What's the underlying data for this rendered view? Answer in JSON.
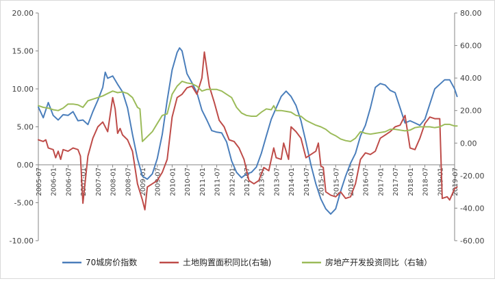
{
  "chart_data": {
    "type": "line",
    "title": "",
    "xlabel": "",
    "ylabel": "",
    "ylim_left": [
      -10,
      20
    ],
    "ylim_right": [
      -60,
      80
    ],
    "yticks_left": [
      "-10.00",
      "-5.00",
      "0.00",
      "5.00",
      "10.00",
      "15.00",
      "20.00"
    ],
    "yticks_right": [
      "-60.00",
      "-40.00",
      "-20.00",
      "0.00",
      "20.00",
      "40.00",
      "60.00",
      "80.00"
    ],
    "x_start": "2005-07",
    "x_end": "2019-07",
    "x_ticks": [
      "2005-07",
      "2006-01",
      "2006-07",
      "2007-01",
      "2007-07",
      "2008-01",
      "2008-07",
      "2009-01",
      "2009-07",
      "2010-01",
      "2010-07",
      "2011-01",
      "2011-07",
      "2012-01",
      "2012-07",
      "2013-01",
      "2013-07",
      "2014-01",
      "2014-07",
      "2015-01",
      "2015-07",
      "2016-01",
      "2016-07",
      "2017-01",
      "2017-07",
      "2018-01",
      "2018-07",
      "2019-01",
      "2019-07"
    ],
    "legend_position": "bottom",
    "grid": false,
    "series": [
      {
        "name": "70城房价指数",
        "axis": "left",
        "color": "#4a7ebb",
        "points": [
          [
            "2005-07",
            7.6
          ],
          [
            "2005-09",
            6.2
          ],
          [
            "2005-11",
            8.2
          ],
          [
            "2006-01",
            6.5
          ],
          [
            "2006-03",
            5.9
          ],
          [
            "2006-05",
            6.6
          ],
          [
            "2006-07",
            6.5
          ],
          [
            "2006-09",
            7.0
          ],
          [
            "2006-11",
            5.8
          ],
          [
            "2007-01",
            5.9
          ],
          [
            "2007-03",
            5.3
          ],
          [
            "2007-05",
            7.0
          ],
          [
            "2007-07",
            8.5
          ],
          [
            "2007-09",
            10.2
          ],
          [
            "2007-10",
            12.2
          ],
          [
            "2007-11",
            11.4
          ],
          [
            "2008-01",
            11.7
          ],
          [
            "2008-03",
            10.6
          ],
          [
            "2008-05",
            9.6
          ],
          [
            "2008-07",
            7.5
          ],
          [
            "2008-09",
            4.0
          ],
          [
            "2008-11",
            0.8
          ],
          [
            "2009-01",
            -1.5
          ],
          [
            "2009-03",
            -1.9
          ],
          [
            "2009-05",
            -1.2
          ],
          [
            "2009-07",
            0.8
          ],
          [
            "2009-09",
            4.0
          ],
          [
            "2009-11",
            8.5
          ],
          [
            "2010-01",
            12.5
          ],
          [
            "2010-03",
            14.8
          ],
          [
            "2010-04",
            15.4
          ],
          [
            "2010-05",
            15.0
          ],
          [
            "2010-07",
            12.0
          ],
          [
            "2010-09",
            10.8
          ],
          [
            "2010-11",
            9.5
          ],
          [
            "2011-01",
            7.2
          ],
          [
            "2011-03",
            5.9
          ],
          [
            "2011-05",
            4.5
          ],
          [
            "2011-07",
            4.3
          ],
          [
            "2011-09",
            4.2
          ],
          [
            "2011-11",
            3.0
          ],
          [
            "2012-01",
            0.5
          ],
          [
            "2012-03",
            -1.0
          ],
          [
            "2012-05",
            -1.7
          ],
          [
            "2012-07",
            -1.2
          ],
          [
            "2012-09",
            -1.0
          ],
          [
            "2012-11",
            -0.3
          ],
          [
            "2013-01",
            1.5
          ],
          [
            "2013-03",
            3.8
          ],
          [
            "2013-05",
            6.0
          ],
          [
            "2013-07",
            7.5
          ],
          [
            "2013-09",
            9.0
          ],
          [
            "2013-11",
            9.7
          ],
          [
            "2014-01",
            9.0
          ],
          [
            "2014-03",
            7.8
          ],
          [
            "2014-05",
            5.8
          ],
          [
            "2014-07",
            3.0
          ],
          [
            "2014-09",
            0.0
          ],
          [
            "2014-11",
            -2.5
          ],
          [
            "2015-01",
            -4.5
          ],
          [
            "2015-03",
            -5.8
          ],
          [
            "2015-05",
            -6.5
          ],
          [
            "2015-07",
            -5.8
          ],
          [
            "2015-09",
            -3.5
          ],
          [
            "2015-11",
            -1.5
          ],
          [
            "2016-01",
            0.2
          ],
          [
            "2016-03",
            1.5
          ],
          [
            "2016-05",
            3.8
          ],
          [
            "2016-07",
            5.2
          ],
          [
            "2016-09",
            7.5
          ],
          [
            "2016-11",
            10.2
          ],
          [
            "2017-01",
            10.7
          ],
          [
            "2017-03",
            10.5
          ],
          [
            "2017-05",
            9.8
          ],
          [
            "2017-07",
            9.5
          ],
          [
            "2017-09",
            7.5
          ],
          [
            "2017-11",
            5.5
          ],
          [
            "2018-01",
            5.8
          ],
          [
            "2018-03",
            5.5
          ],
          [
            "2018-05",
            5.2
          ],
          [
            "2018-07",
            6.0
          ],
          [
            "2018-09",
            8.0
          ],
          [
            "2018-11",
            10.0
          ],
          [
            "2019-01",
            10.6
          ],
          [
            "2019-03",
            11.2
          ],
          [
            "2019-05",
            11.2
          ],
          [
            "2019-07",
            10.0
          ],
          [
            "2019-08",
            9.0
          ]
        ]
      },
      {
        "name": "土地购置面积同比(右轴)",
        "axis": "right",
        "color": "#be4b48",
        "points": [
          [
            "2005-07",
            2.0
          ],
          [
            "2005-09",
            1.0
          ],
          [
            "2005-10",
            2.0
          ],
          [
            "2005-11",
            -3.0
          ],
          [
            "2006-01",
            -4.0
          ],
          [
            "2006-02",
            -9.0
          ],
          [
            "2006-03",
            -5.0
          ],
          [
            "2006-04",
            -10.0
          ],
          [
            "2006-05",
            -4.0
          ],
          [
            "2006-07",
            -5.0
          ],
          [
            "2006-09",
            -3.0
          ],
          [
            "2006-11",
            -4.0
          ],
          [
            "2006-12",
            -8.0
          ],
          [
            "2007-01",
            -37.0
          ],
          [
            "2007-03",
            -8.0
          ],
          [
            "2007-05",
            3.0
          ],
          [
            "2007-07",
            10.0
          ],
          [
            "2007-09",
            13.0
          ],
          [
            "2007-11",
            7.0
          ],
          [
            "2008-01",
            28.0
          ],
          [
            "2008-02",
            21.0
          ],
          [
            "2008-03",
            6.0
          ],
          [
            "2008-04",
            9.0
          ],
          [
            "2008-05",
            5.0
          ],
          [
            "2008-07",
            2.0
          ],
          [
            "2008-09",
            -5.0
          ],
          [
            "2008-11",
            -25.0
          ],
          [
            "2009-01",
            -35.0
          ],
          [
            "2009-02",
            -41.0
          ],
          [
            "2009-03",
            -27.0
          ],
          [
            "2009-05",
            -25.0
          ],
          [
            "2009-07",
            -23.0
          ],
          [
            "2009-09",
            -18.0
          ],
          [
            "2009-11",
            -10.0
          ],
          [
            "2010-01",
            16.0
          ],
          [
            "2010-03",
            28.0
          ],
          [
            "2010-05",
            30.0
          ],
          [
            "2010-07",
            34.0
          ],
          [
            "2010-09",
            35.0
          ],
          [
            "2010-11",
            30.0
          ],
          [
            "2011-01",
            40.0
          ],
          [
            "2011-02",
            56.0
          ],
          [
            "2011-04",
            35.0
          ],
          [
            "2011-06",
            25.0
          ],
          [
            "2011-08",
            14.0
          ],
          [
            "2011-10",
            10.0
          ],
          [
            "2011-12",
            2.0
          ],
          [
            "2012-02",
            1.0
          ],
          [
            "2012-04",
            -3.0
          ],
          [
            "2012-06",
            -10.0
          ],
          [
            "2012-08",
            -23.0
          ],
          [
            "2012-10",
            -25.0
          ],
          [
            "2012-12",
            -23.0
          ],
          [
            "2013-02",
            -15.0
          ],
          [
            "2013-04",
            -17.0
          ],
          [
            "2013-06",
            -3.0
          ],
          [
            "2013-07",
            -9.0
          ],
          [
            "2013-09",
            -10.0
          ],
          [
            "2013-10",
            0.0
          ],
          [
            "2013-12",
            -10.0
          ],
          [
            "2014-01",
            10.0
          ],
          [
            "2014-03",
            7.0
          ],
          [
            "2014-05",
            3.0
          ],
          [
            "2014-07",
            -9.0
          ],
          [
            "2014-09",
            -7.0
          ],
          [
            "2014-11",
            -5.0
          ],
          [
            "2014-12",
            0.0
          ],
          [
            "2015-01",
            -14.0
          ],
          [
            "2015-02",
            -15.0
          ],
          [
            "2015-03",
            -30.0
          ],
          [
            "2015-05",
            -32.0
          ],
          [
            "2015-07",
            -33.0
          ],
          [
            "2015-09",
            -30.0
          ],
          [
            "2015-11",
            -34.0
          ],
          [
            "2016-01",
            -33.0
          ],
          [
            "2016-03",
            -25.0
          ],
          [
            "2016-05",
            -10.0
          ],
          [
            "2016-07",
            -6.0
          ],
          [
            "2016-09",
            -7.0
          ],
          [
            "2016-11",
            -5.0
          ],
          [
            "2017-01",
            3.0
          ],
          [
            "2017-03",
            5.0
          ],
          [
            "2017-05",
            7.0
          ],
          [
            "2017-07",
            10.0
          ],
          [
            "2017-09",
            11.0
          ],
          [
            "2017-11",
            17.0
          ],
          [
            "2018-01",
            -3.0
          ],
          [
            "2018-03",
            -4.0
          ],
          [
            "2018-05",
            3.0
          ],
          [
            "2018-07",
            12.0
          ],
          [
            "2018-09",
            16.0
          ],
          [
            "2018-11",
            15.0
          ],
          [
            "2019-01",
            15.0
          ],
          [
            "2019-02",
            -34.0
          ],
          [
            "2019-04",
            -33.0
          ],
          [
            "2019-05",
            -35.0
          ],
          [
            "2019-07",
            -28.0
          ],
          [
            "2019-08",
            -27.0
          ]
        ]
      },
      {
        "name": "房地产开发投资同比（右轴）",
        "axis": "right",
        "color": "#9bbb59",
        "points": [
          [
            "2005-07",
            23.0
          ],
          [
            "2005-09",
            22.0
          ],
          [
            "2005-11",
            21.5
          ],
          [
            "2006-01",
            20.5
          ],
          [
            "2006-03",
            20.0
          ],
          [
            "2006-05",
            21.5
          ],
          [
            "2006-07",
            24.0
          ],
          [
            "2006-09",
            24.0
          ],
          [
            "2006-11",
            23.5
          ],
          [
            "2007-01",
            22.0
          ],
          [
            "2007-03",
            26.0
          ],
          [
            "2007-05",
            27.0
          ],
          [
            "2007-07",
            28.0
          ],
          [
            "2007-09",
            29.0
          ],
          [
            "2007-11",
            30.5
          ],
          [
            "2008-01",
            32.0
          ],
          [
            "2008-03",
            31.0
          ],
          [
            "2008-05",
            31.5
          ],
          [
            "2008-07",
            30.5
          ],
          [
            "2008-09",
            28.0
          ],
          [
            "2008-11",
            22.0
          ],
          [
            "2008-12",
            21.0
          ],
          [
            "2009-01",
            1.0
          ],
          [
            "2009-03",
            4.0
          ],
          [
            "2009-05",
            7.0
          ],
          [
            "2009-07",
            12.0
          ],
          [
            "2009-09",
            17.0
          ],
          [
            "2009-11",
            18.0
          ],
          [
            "2010-01",
            30.0
          ],
          [
            "2010-03",
            35.0
          ],
          [
            "2010-05",
            38.0
          ],
          [
            "2010-07",
            37.0
          ],
          [
            "2010-09",
            36.5
          ],
          [
            "2010-11",
            35.0
          ],
          [
            "2011-01",
            32.0
          ],
          [
            "2011-03",
            33.0
          ],
          [
            "2011-05",
            33.0
          ],
          [
            "2011-07",
            33.0
          ],
          [
            "2011-09",
            32.0
          ],
          [
            "2011-11",
            30.0
          ],
          [
            "2012-01",
            28.0
          ],
          [
            "2012-03",
            22.0
          ],
          [
            "2012-05",
            18.5
          ],
          [
            "2012-07",
            17.0
          ],
          [
            "2012-09",
            16.5
          ],
          [
            "2012-11",
            16.5
          ],
          [
            "2013-01",
            19.0
          ],
          [
            "2013-03",
            21.0
          ],
          [
            "2013-05",
            20.5
          ],
          [
            "2013-06",
            23.0
          ],
          [
            "2013-07",
            20.0
          ],
          [
            "2013-09",
            20.0
          ],
          [
            "2013-11",
            19.5
          ],
          [
            "2014-01",
            19.0
          ],
          [
            "2014-03",
            17.0
          ],
          [
            "2014-05",
            16.5
          ],
          [
            "2014-07",
            14.0
          ],
          [
            "2014-09",
            12.5
          ],
          [
            "2014-11",
            11.0
          ],
          [
            "2015-01",
            10.0
          ],
          [
            "2015-03",
            8.5
          ],
          [
            "2015-05",
            6.0
          ],
          [
            "2015-07",
            4.5
          ],
          [
            "2015-09",
            2.5
          ],
          [
            "2015-11",
            1.5
          ],
          [
            "2016-01",
            1.0
          ],
          [
            "2016-03",
            3.0
          ],
          [
            "2016-05",
            7.0
          ],
          [
            "2016-07",
            6.0
          ],
          [
            "2016-09",
            5.5
          ],
          [
            "2016-11",
            6.0
          ],
          [
            "2017-01",
            6.5
          ],
          [
            "2017-03",
            7.0
          ],
          [
            "2017-05",
            8.5
          ],
          [
            "2017-07",
            8.5
          ],
          [
            "2017-09",
            8.0
          ],
          [
            "2017-11",
            7.5
          ],
          [
            "2018-01",
            8.0
          ],
          [
            "2018-03",
            9.5
          ],
          [
            "2018-05",
            10.0
          ],
          [
            "2018-07",
            10.0
          ],
          [
            "2018-09",
            10.0
          ],
          [
            "2018-11",
            9.5
          ],
          [
            "2019-01",
            10.0
          ],
          [
            "2019-03",
            11.5
          ],
          [
            "2019-05",
            11.5
          ],
          [
            "2019-07",
            10.5
          ],
          [
            "2019-08",
            10.5
          ]
        ]
      }
    ]
  }
}
